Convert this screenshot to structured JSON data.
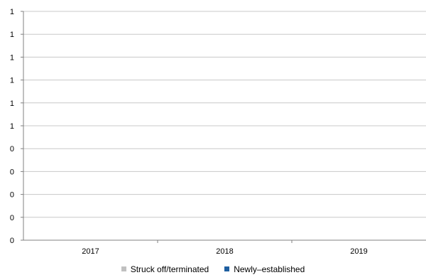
{
  "chart_data": {
    "type": "bar",
    "title": "",
    "xlabel": "",
    "ylabel": "",
    "categories": [
      "2017",
      "2018",
      "2019"
    ],
    "series": [
      {
        "name": "Struck off/terminated",
        "color": "#c0c0c0",
        "values": [
          0,
          0,
          0
        ]
      },
      {
        "name": "Newly–established",
        "color": "#1f5fa0",
        "values": [
          0,
          0,
          0
        ]
      }
    ],
    "y_tick_labels": [
      "0",
      "0",
      "0",
      "0",
      "0",
      "1",
      "1",
      "1",
      "1",
      "1",
      "1"
    ],
    "ylim": [
      0,
      1
    ],
    "grid": true,
    "legend_position": "bottom"
  }
}
